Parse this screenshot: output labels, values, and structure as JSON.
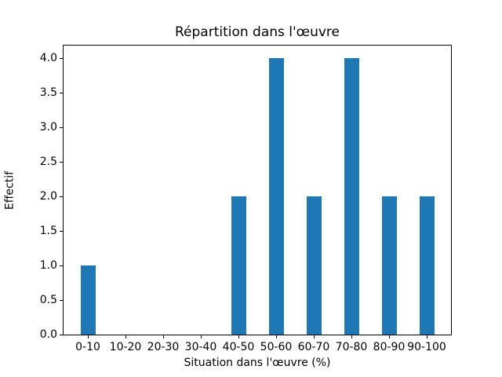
{
  "figure": {
    "background": "#ffffff",
    "axis_color": "#000000"
  },
  "chart_data": {
    "type": "bar",
    "title": "Répartition dans l'œuvre",
    "xlabel": "Situation dans l'œuvre (%)",
    "ylabel": "Effectif",
    "categories": [
      "0-10",
      "10-20",
      "20-30",
      "30-40",
      "40-50",
      "50-60",
      "60-70",
      "70-80",
      "80-90",
      "90-100"
    ],
    "values": [
      1,
      0,
      0,
      0,
      2,
      4,
      2,
      4,
      2,
      2
    ],
    "ytick_labels": [
      "0.0",
      "0.5",
      "1.0",
      "1.5",
      "2.0",
      "2.5",
      "3.0",
      "3.5",
      "4.0"
    ],
    "ytick_values": [
      0,
      0.5,
      1,
      1.5,
      2,
      2.5,
      3,
      3.5,
      4
    ],
    "ylim": [
      0,
      4.2
    ],
    "bar_color": "#1f77b4",
    "grid": false,
    "legend_position": "none"
  }
}
